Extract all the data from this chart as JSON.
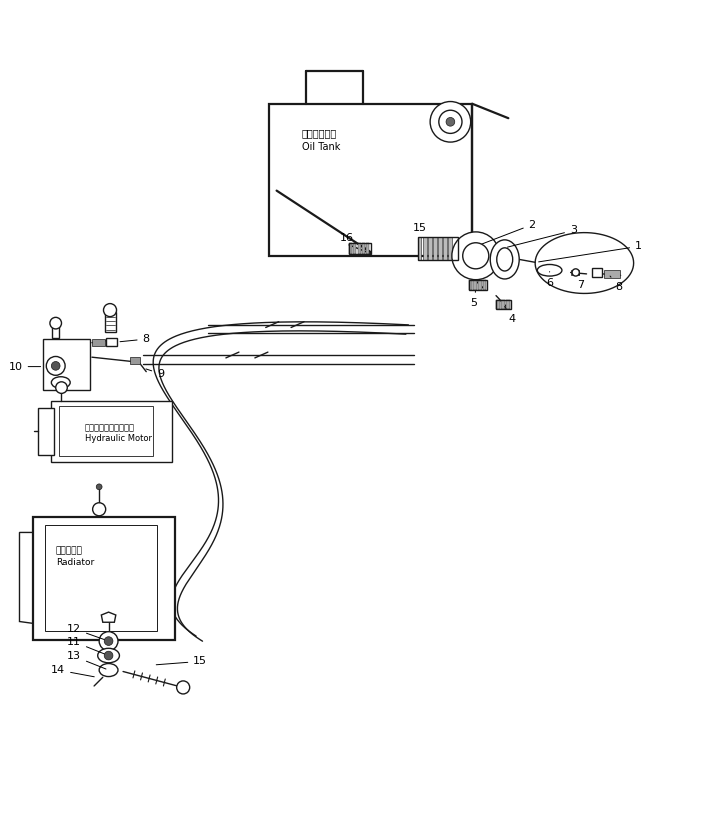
{
  "bg_color": "#ffffff",
  "line_color": "#1a1a1a",
  "text_color": "#000000",
  "fig_width": 7.27,
  "fig_height": 8.23,
  "dpi": 100,
  "oil_tank_ja": "オイルタンク",
  "oil_tank_en": "Oil Tank",
  "hydraulic_ja": "ハイドロリックモータ",
  "hydraulic_en": "Hydraulic Motor",
  "radiator_ja": "ラジエータ",
  "radiator_en": "Radiator"
}
